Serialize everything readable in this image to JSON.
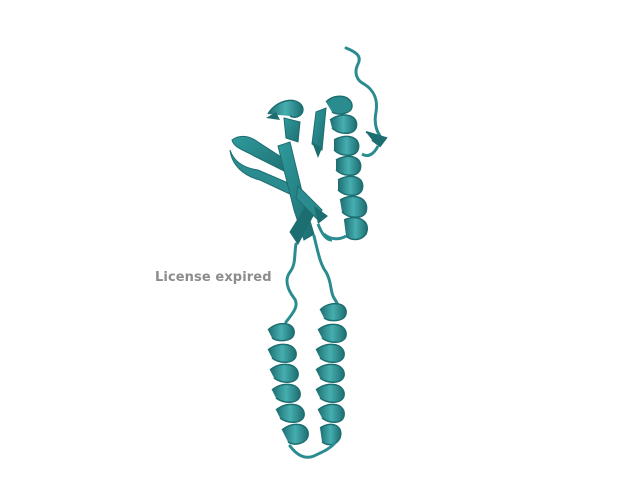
{
  "watermark": {
    "text": "License expired"
  },
  "structure": {
    "description_icon": "protein-ribbon-icon",
    "colors": {
      "ribbon": "#2a8c8f",
      "ribbon_dark": "#1d6e71",
      "ribbon_light": "#46aeb0",
      "background": "#ffffff",
      "watermark": "#8c8c8c"
    }
  }
}
